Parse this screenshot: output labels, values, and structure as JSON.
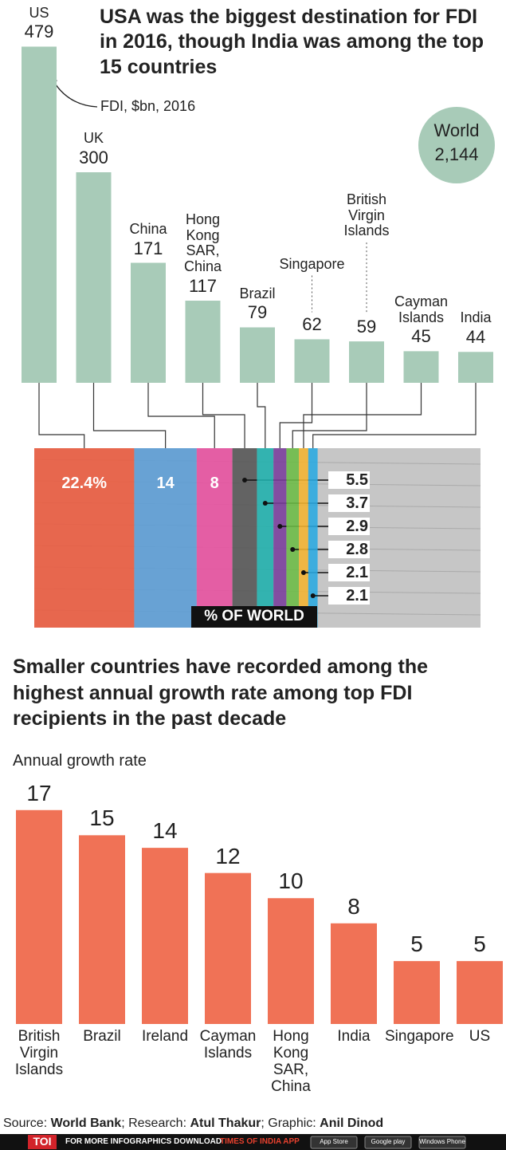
{
  "chart_data": [
    {
      "type": "bar",
      "title": "USA was the biggest destination for FDI in 2016, though India was among the top 15 countries",
      "annotation": "FDI, $bn, 2016",
      "world": {
        "name": "World",
        "value": 2144,
        "value_label": "2,144"
      },
      "categories": [
        "US",
        "UK",
        "China",
        "Hong Kong SAR, China",
        "Brazil",
        "Singapore",
        "British Virgin Islands",
        "Cayman Islands",
        "India"
      ],
      "values": [
        479,
        300,
        171,
        117,
        79,
        62,
        59,
        45,
        44
      ],
      "color": "#a8cbb8",
      "ylim": [
        0,
        500
      ],
      "share": {
        "label": "% OF WORLD",
        "values": [
          22.4,
          14,
          8,
          5.5,
          3.7,
          2.9,
          2.8,
          2.1,
          2.1
        ],
        "value_labels": [
          "22.4%",
          "14",
          "8",
          "5.5",
          "3.7",
          "2.9",
          "2.8",
          "2.1",
          "2.1"
        ],
        "colors": [
          "#ec5a3d",
          "#5b9dd6",
          "#e8509f",
          "#555555",
          "#1fb0ad",
          "#7a3d9c",
          "#6cbc45",
          "#f5b431",
          "#2aaae1"
        ],
        "xlim": [
          0,
          100
        ]
      }
    },
    {
      "type": "bar",
      "title": "Smaller countries have recorded among the highest annual growth rate among top FDI recipients in the past decade",
      "y_label": "Annual growth rate",
      "categories": [
        "British Virgin Islands",
        "Brazil",
        "Ireland",
        "Cayman Islands",
        "Hong Kong SAR, China",
        "India",
        "Singapore",
        "US"
      ],
      "values": [
        17,
        15,
        14,
        12,
        10,
        8,
        5,
        5
      ],
      "color": "#f07256",
      "ylim": [
        0,
        18
      ]
    }
  ],
  "footer": {
    "source": [
      "Source: ",
      "World Bank",
      "; Research: ",
      "Atul Thakur",
      "; Graphic: ",
      "Anil Dinod"
    ],
    "brand": "TOI",
    "promo": "FOR MORE INFOGRAPHICS DOWNLOAD",
    "app": "TIMES OF INDIA APP",
    "badges": [
      "App Store",
      "Google play",
      "Windows Phone"
    ]
  }
}
